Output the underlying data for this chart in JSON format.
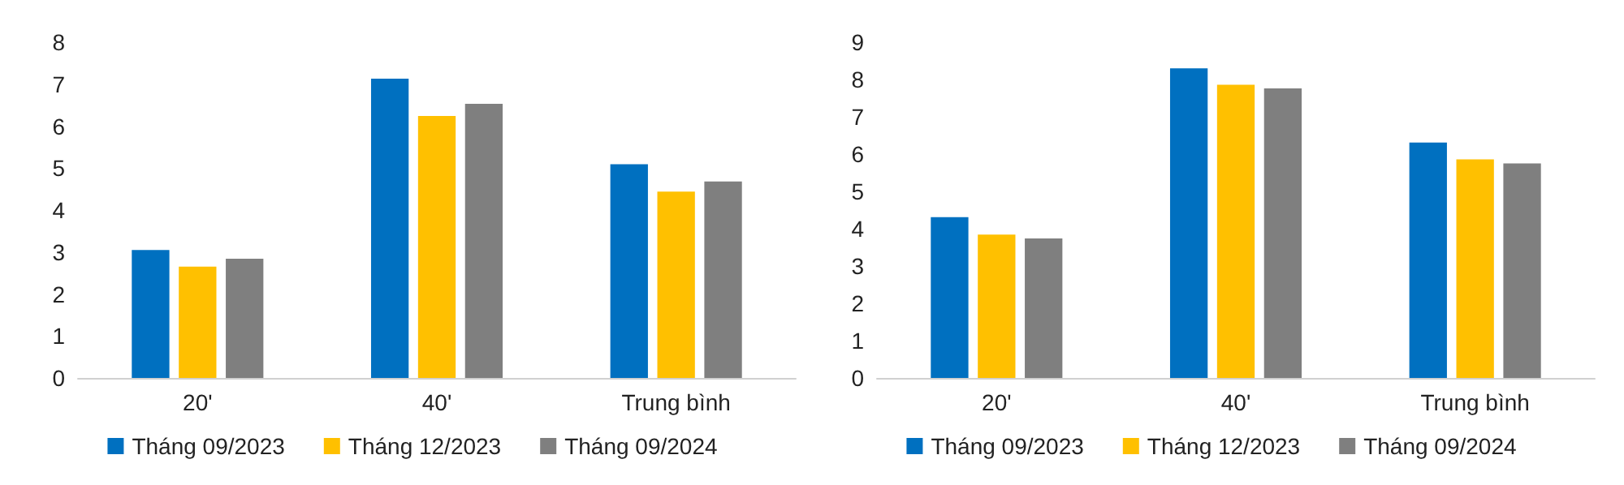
{
  "chart_data": [
    {
      "type": "bar",
      "categories": [
        "20'",
        "40'",
        "Trung bình"
      ],
      "series": [
        {
          "name": "Tháng 09/2023",
          "color": "#0070c0",
          "values": [
            3.05,
            7.13,
            5.09
          ]
        },
        {
          "name": "Tháng 12/2023",
          "color": "#ffc000",
          "values": [
            2.65,
            6.24,
            4.44
          ]
        },
        {
          "name": "Tháng 09/2024",
          "color": "#7f7f7f",
          "values": [
            2.84,
            6.53,
            4.68
          ]
        }
      ],
      "ylim": [
        0,
        8
      ],
      "yticks": [
        0,
        1,
        2,
        3,
        4,
        5,
        6,
        7,
        8
      ],
      "grid": false,
      "legend": "bottom"
    },
    {
      "type": "bar",
      "categories": [
        "20'",
        "40'",
        "Trung bình"
      ],
      "series": [
        {
          "name": "Tháng 09/2023",
          "color": "#0070c0",
          "values": [
            4.31,
            8.3,
            6.31
          ]
        },
        {
          "name": "Tháng 12/2023",
          "color": "#ffc000",
          "values": [
            3.84,
            7.86,
            5.86
          ]
        },
        {
          "name": "Tháng 09/2024",
          "color": "#7f7f7f",
          "values": [
            3.74,
            7.76,
            5.75
          ]
        }
      ],
      "ylim": [
        0,
        9
      ],
      "yticks": [
        0,
        1,
        2,
        3,
        4,
        5,
        6,
        7,
        8,
        9
      ],
      "grid": false,
      "legend": "bottom"
    }
  ]
}
